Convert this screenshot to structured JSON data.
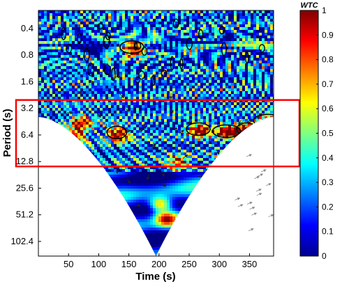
{
  "chart_data": {
    "type": "heatmap",
    "title": "",
    "xlabel": "Time (s)",
    "ylabel": "Period (s)",
    "xlim": [
      0,
      390
    ],
    "ylim": [
      0.25,
      150
    ],
    "y_scale": "log2",
    "y_reversed": true,
    "x_ticks": [
      "50",
      "100",
      "150",
      "200",
      "250",
      "300",
      "350"
    ],
    "x_tick_values": [
      50,
      100,
      150,
      200,
      250,
      300,
      350
    ],
    "y_ticks": [
      "0.4",
      "0.8",
      "1.6",
      "3.2",
      "6.4",
      "12.8",
      "25.6",
      "51.2",
      "102.4"
    ],
    "y_tick_values": [
      0.4,
      0.8,
      1.6,
      3.2,
      6.4,
      12.8,
      25.6,
      51.2,
      102.4
    ],
    "colorbar": {
      "label": "WTC",
      "range": [
        0,
        1
      ],
      "ticks": [
        "0",
        "0.1",
        "0.2",
        "0.3",
        "0.4",
        "0.5",
        "0.6",
        "0.7",
        "0.8",
        "0.9",
        "1"
      ],
      "tick_values": [
        0,
        0.1,
        0.2,
        0.3,
        0.4,
        0.5,
        0.6,
        0.7,
        0.8,
        0.9,
        1.0
      ],
      "colormap": "jet"
    },
    "high_coherence_regions": [
      {
        "time": 130,
        "period": 6.0,
        "wtc": 0.95
      },
      {
        "time": 265,
        "period": 5.5,
        "wtc": 0.9
      },
      {
        "time": 312,
        "period": 5.8,
        "wtc": 0.95
      },
      {
        "time": 345,
        "period": 5.5,
        "wtc": 0.9
      },
      {
        "time": 310,
        "period": 13.5,
        "wtc": 0.95
      },
      {
        "time": 380,
        "period": 4.4,
        "wtc": 0.9
      },
      {
        "time": 60,
        "period": 6.2,
        "wtc": 0.75
      },
      {
        "time": 70,
        "period": 4.4,
        "wtc": 0.7
      },
      {
        "time": 200,
        "period": 38,
        "wtc": 0.75
      },
      {
        "time": 210,
        "period": 55,
        "wtc": 0.75
      },
      {
        "time": 155,
        "period": 0.65,
        "wtc": 0.9
      },
      {
        "time": 230,
        "period": 13,
        "wtc": 0.7
      },
      {
        "time": 35,
        "period": 21,
        "wtc": 0.65
      }
    ],
    "highlight_box": {
      "period_min": 3.2,
      "period_max": 12.8,
      "color": "#ff0000"
    },
    "cone_of_influence": true
  }
}
